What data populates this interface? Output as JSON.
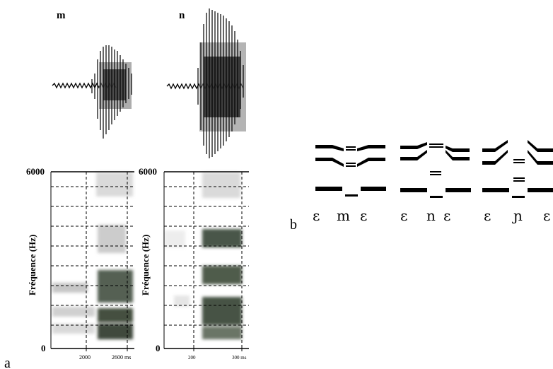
{
  "panel_a": {
    "label": "a",
    "waveforms": [
      {
        "letter": "m"
      },
      {
        "letter": "n"
      }
    ],
    "spectrograms": [
      {
        "y_top": "6000",
        "y_bottom": "0",
        "ylabel": "Fréquence (Hz)",
        "x_ticks": [
          "2000",
          "2600 ms"
        ]
      },
      {
        "y_top": "6000",
        "y_bottom": "0",
        "ylabel": "Fréquence (Hz)",
        "x_ticks": [
          "200",
          "300 ms"
        ]
      }
    ]
  },
  "panel_b": {
    "label": "b",
    "sequences": [
      {
        "v1": "ɛ",
        "consonant": "m",
        "v2": "ɛ"
      },
      {
        "v1": "ɛ",
        "consonant": "n",
        "v2": "ɛ"
      },
      {
        "v1": "ɛ",
        "consonant": "ɲ",
        "v2": "ɛ"
      }
    ]
  }
}
